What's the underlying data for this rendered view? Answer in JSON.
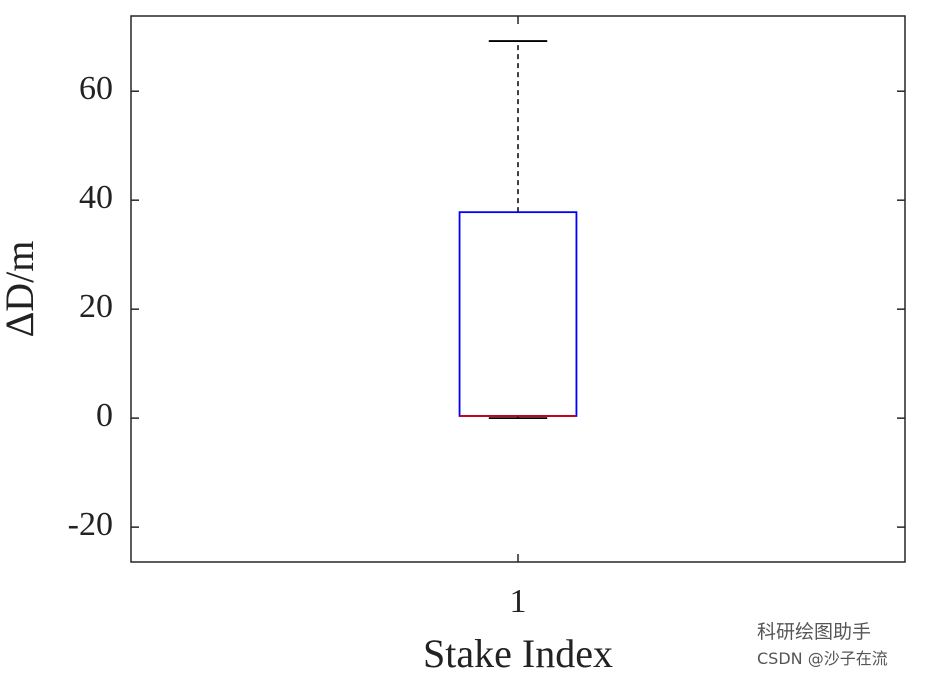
{
  "chart_data": {
    "type": "box",
    "x_label": "Stake Index",
    "y_label": "ΔD/m",
    "categories": [
      "1"
    ],
    "boxes": [
      {
        "min": 0,
        "q1": 0.4,
        "median": 0.4,
        "q3": 37.8,
        "max": 69.2
      }
    ],
    "box_color": "#0000ff",
    "median_color": "#d00000",
    "whisker_color": "#000000",
    "ylim": [
      -26.4,
      73.8
    ],
    "yticks": [
      -20,
      0,
      20,
      40,
      60
    ],
    "grid": false
  },
  "watermark": {
    "line1": "科研绘图助手",
    "line2": "CSDN @沙子在流"
  }
}
